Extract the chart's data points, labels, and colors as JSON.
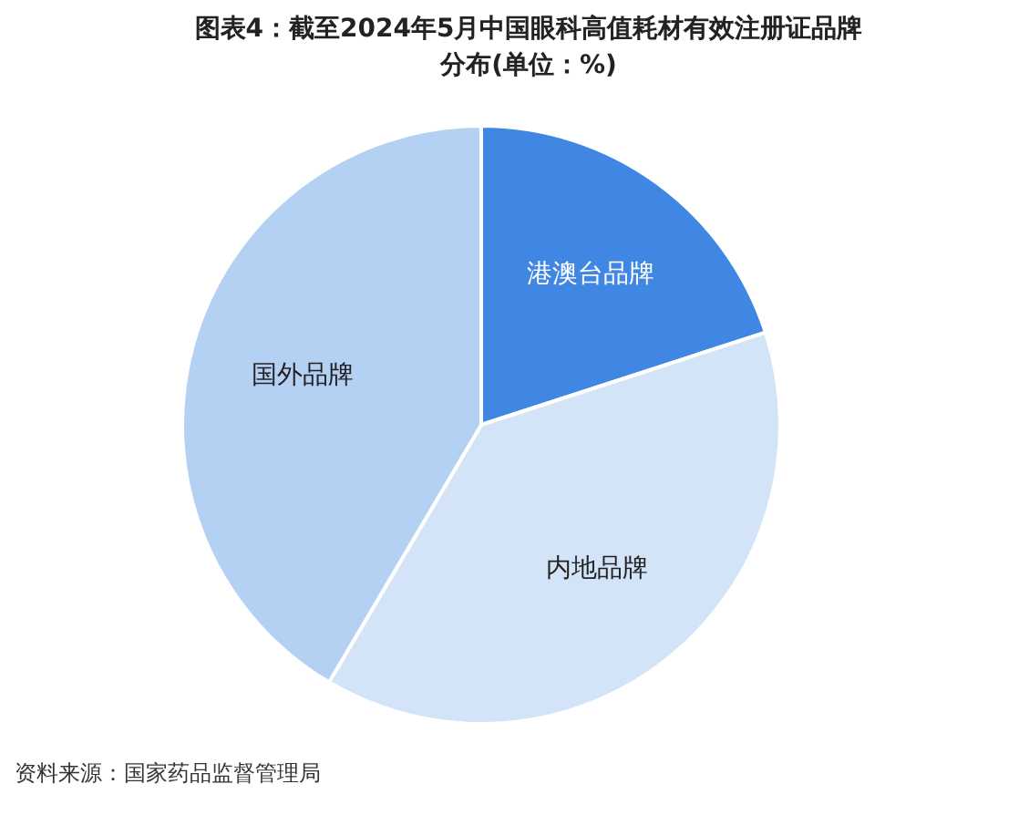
{
  "chart_data": {
    "type": "pie",
    "title": "图表4：截至2024年5月中国眼科高值耗材有效注册证品牌分布(单位：%)",
    "categories": [
      "港澳台品牌",
      "内地品牌",
      "国外品牌"
    ],
    "values": [
      20,
      38.5,
      41.5
    ],
    "colors": [
      "#3f87e3",
      "#d4e4f8",
      "#b4d0f3"
    ],
    "legend": false,
    "annotations": [
      "资料来源：国家药品监督管理局"
    ]
  }
}
